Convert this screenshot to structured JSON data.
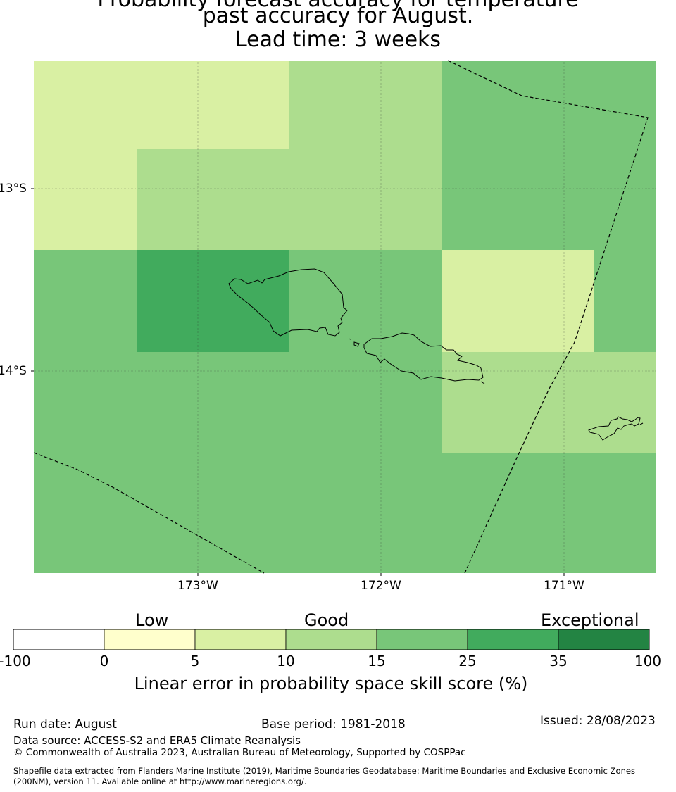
{
  "title": {
    "line1": "Probability forecast accuracy for temperature",
    "line2": "past accuracy for August.",
    "line3": "Lead time: 3 weeks"
  },
  "map": {
    "lat_labels": [
      "13°S",
      "14°S"
    ],
    "lon_labels": [
      "173°W",
      "172°W",
      "171°W"
    ],
    "extent": {
      "lon_min": -173.9,
      "lon_max": -170.5,
      "lat_min": -15.1,
      "lat_max": -12.3
    }
  },
  "colorbar": {
    "category_labels": [
      "Low",
      "Good",
      "Exceptional"
    ],
    "ticks": [
      "-100",
      "0",
      "5",
      "10",
      "15",
      "25",
      "35",
      "100"
    ],
    "colors": [
      "#ffffff",
      "#ffffcc",
      "#d9f0a3",
      "#addd8e",
      "#78c679",
      "#41ab5d",
      "#238443"
    ],
    "title": "Linear error in probability space skill score (%)"
  },
  "footer": {
    "run_date": "Run date: August",
    "base_period": "Base period: 1981-2018",
    "issued": "Issued: 28/08/2023",
    "data_source": "Data source: ACCESS-S2 and ERA5 Climate Reanalysis",
    "copyright": "© Commonwealth of Australia 2023, Australian Bureau of Meteorology, Supported by COSPPac",
    "shapefile_line1": "Shapefile data extracted from Flanders Marine Institute (2019), Maritime Boundaries Geodatabase: Maritime Boundaries and Exclusive Economic Zones",
    "shapefile_line2": "(200NM), version 11. Available online at http://www.marineregions.org/."
  }
}
